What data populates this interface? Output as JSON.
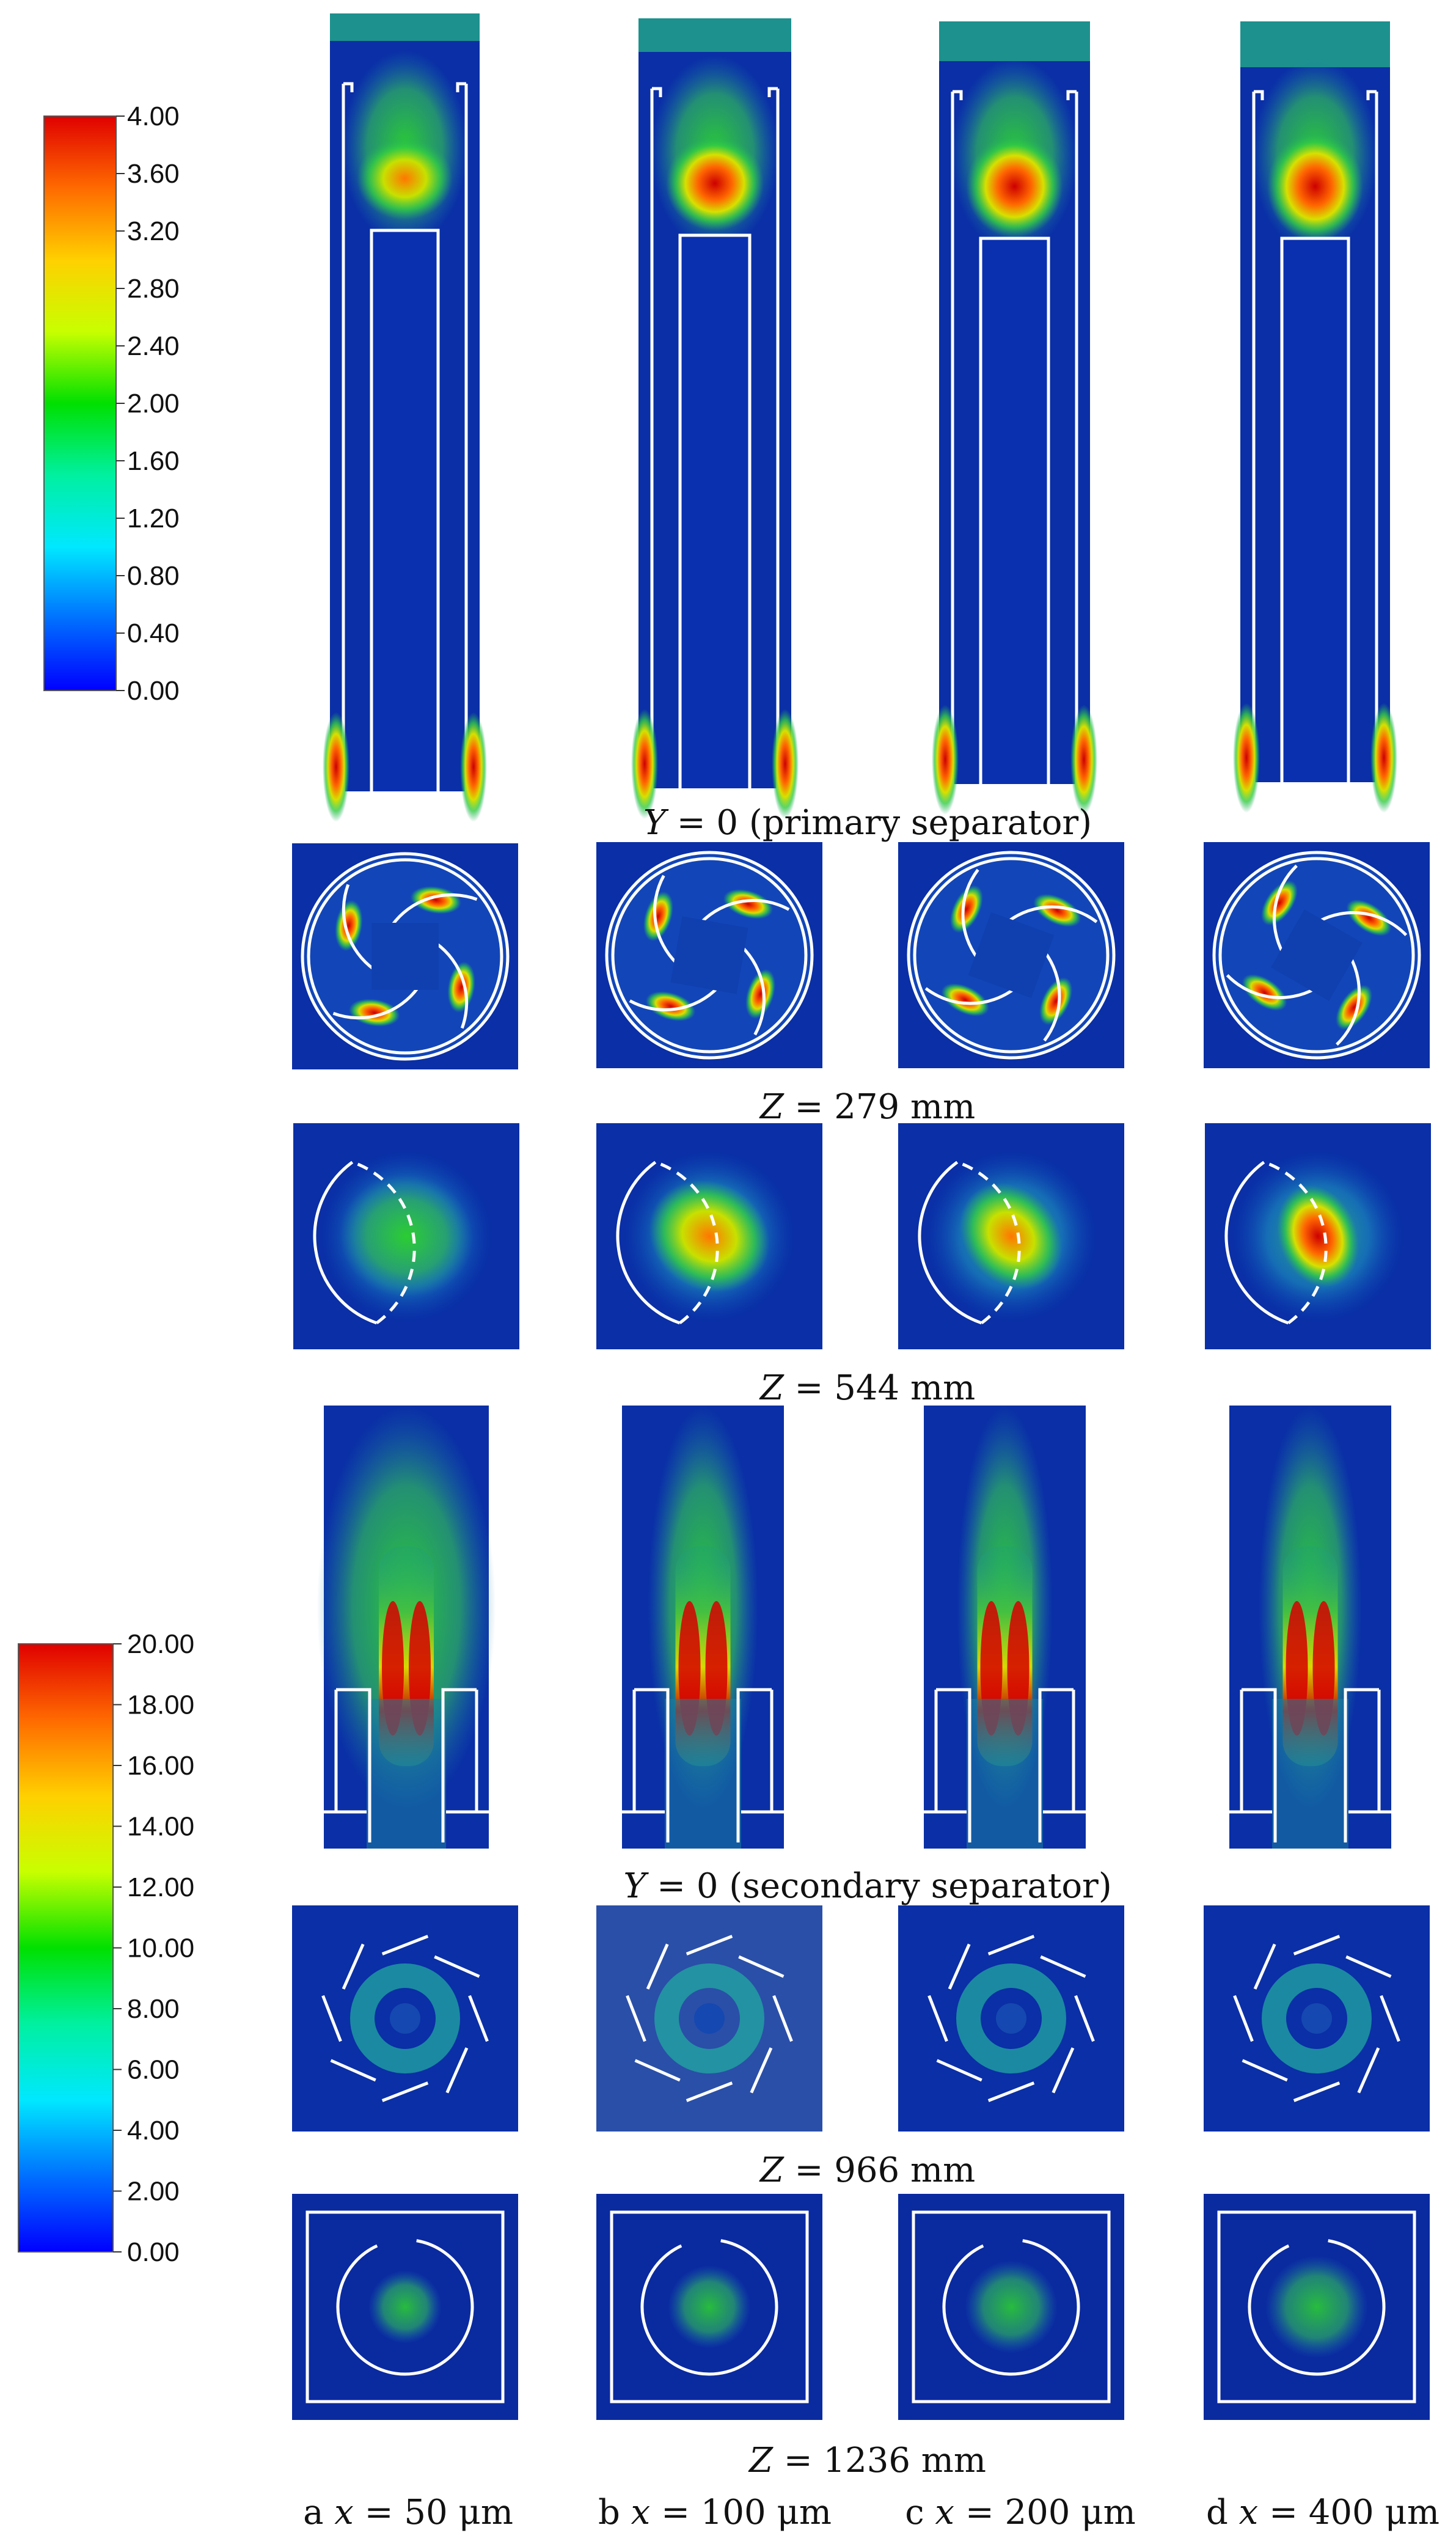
{
  "colorbars": [
    {
      "id": "top",
      "ticks": [
        "4.00",
        "3.60",
        "3.20",
        "2.80",
        "2.40",
        "2.00",
        "1.60",
        "1.20",
        "0.80",
        "0.40",
        "0.00"
      ]
    },
    {
      "id": "bottom",
      "ticks": [
        "20.00",
        "18.00",
        "16.00",
        "14.00",
        "12.00",
        "10.00",
        "8.00",
        "6.00",
        "4.00",
        "2.00",
        "0.00"
      ]
    }
  ],
  "row_captions": {
    "primary": {
      "prefix": "Y",
      "rest": " = 0 (primary separator)"
    },
    "z279": {
      "prefix": "Z",
      "rest": " = 279 mm"
    },
    "z544": {
      "prefix": "Z",
      "rest": " = 544 mm"
    },
    "secondary": {
      "prefix": "Y",
      "rest": " = 0 (secondary separator)"
    },
    "z966": {
      "prefix": "Z",
      "rest": " = 966 mm"
    },
    "z1236": {
      "prefix": "Z",
      "rest": " = 1236 mm"
    }
  },
  "column_captions": [
    {
      "letter": "a ",
      "var": "x",
      "value": " = 50 μm"
    },
    {
      "letter": "b ",
      "var": "x",
      "value": " = 100 μm"
    },
    {
      "letter": "c ",
      "var": "x",
      "value": " = 200 μm"
    },
    {
      "letter": "d ",
      "var": "x",
      "value": " = 400 μm"
    }
  ],
  "colors": {
    "field_low": "#0a2fa6",
    "jet_red": "#d60000",
    "jet_orange": "#ff8800",
    "jet_yellow": "#f2f200",
    "jet_green": "#22cc33",
    "jet_cyan": "#19e6e6",
    "wall_line": "#ffffff"
  }
}
